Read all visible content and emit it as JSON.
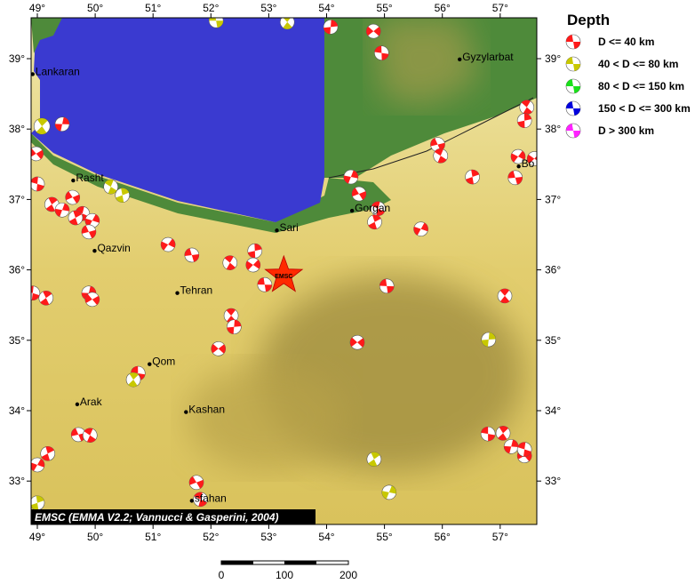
{
  "map": {
    "lon_range": [
      48.9,
      57.65
    ],
    "lat_range": [
      32.4,
      39.6
    ],
    "lon_ticks": [
      49,
      50,
      51,
      52,
      53,
      54,
      55,
      56,
      57
    ],
    "lat_ticks": [
      33,
      34,
      35,
      36,
      37,
      38,
      39
    ],
    "degree_symbol": "°",
    "colors": {
      "sea": "#3a3ad0",
      "lowland": "#4e8a3a",
      "land": "#e6d27a",
      "desert": "#9c8a3e"
    },
    "credit": "EMSC (EMMA V2.2; Vannucci & Gasperini, 2004)",
    "main_event": {
      "lon": 53.26,
      "lat": 35.92,
      "label": "EMSC",
      "color": "#ff2a00"
    },
    "cities": [
      {
        "name": "Lankaran",
        "lon": 48.92,
        "lat": 38.78
      },
      {
        "name": "Rasht",
        "lon": 49.62,
        "lat": 37.27
      },
      {
        "name": "Qazvin",
        "lon": 49.99,
        "lat": 36.27
      },
      {
        "name": "Tehran",
        "lon": 51.42,
        "lat": 35.67
      },
      {
        "name": "Qom",
        "lon": 50.94,
        "lat": 34.66
      },
      {
        "name": "Arak",
        "lon": 49.69,
        "lat": 34.09
      },
      {
        "name": "Kashan",
        "lon": 51.57,
        "lat": 33.98
      },
      {
        "name": "sfahan",
        "lon": 51.67,
        "lat": 32.72
      },
      {
        "name": "Sari",
        "lon": 53.14,
        "lat": 36.56
      },
      {
        "name": "Gorgan",
        "lon": 54.44,
        "lat": 36.84
      },
      {
        "name": "Gyzylarbat",
        "lon": 56.3,
        "lat": 38.99
      },
      {
        "name": "Bo",
        "lon": 57.32,
        "lat": 37.47
      }
    ],
    "events": [
      [
        52.09,
        39.54,
        2
      ],
      [
        53.32,
        39.52,
        2
      ],
      [
        54.07,
        39.45,
        1
      ],
      [
        54.81,
        39.39,
        1
      ],
      [
        54.95,
        39.08,
        1
      ],
      [
        49.08,
        38.04,
        2
      ],
      [
        49.43,
        38.07,
        1
      ],
      [
        48.98,
        37.65,
        1
      ],
      [
        49.0,
        37.22,
        1
      ],
      [
        49.25,
        36.93,
        1
      ],
      [
        49.43,
        36.85,
        1
      ],
      [
        49.61,
        37.03,
        1
      ],
      [
        49.78,
        36.8,
        1
      ],
      [
        49.66,
        36.74,
        1
      ],
      [
        49.95,
        36.7,
        1
      ],
      [
        49.89,
        36.54,
        1
      ],
      [
        50.27,
        37.18,
        2
      ],
      [
        50.47,
        37.06,
        2
      ],
      [
        51.26,
        36.36,
        1
      ],
      [
        51.67,
        36.21,
        1
      ],
      [
        52.33,
        36.1,
        1
      ],
      [
        52.76,
        36.27,
        1
      ],
      [
        52.73,
        36.07,
        1
      ],
      [
        52.93,
        35.79,
        1
      ],
      [
        52.35,
        35.35,
        1
      ],
      [
        52.4,
        35.19,
        1
      ],
      [
        52.13,
        34.88,
        1
      ],
      [
        50.74,
        34.53,
        1
      ],
      [
        50.66,
        34.44,
        2
      ],
      [
        49.89,
        35.67,
        1
      ],
      [
        49.95,
        35.58,
        1
      ],
      [
        48.92,
        35.67,
        1
      ],
      [
        49.15,
        35.6,
        1
      ],
      [
        54.42,
        37.32,
        1
      ],
      [
        54.56,
        37.08,
        1
      ],
      [
        54.89,
        36.87,
        1
      ],
      [
        54.83,
        36.68,
        1
      ],
      [
        55.63,
        36.58,
        1
      ],
      [
        55.92,
        37.78,
        1
      ],
      [
        55.97,
        37.62,
        1
      ],
      [
        56.52,
        37.32,
        1
      ],
      [
        57.31,
        37.61,
        1
      ],
      [
        57.26,
        37.31,
        1
      ],
      [
        57.46,
        38.31,
        1
      ],
      [
        57.42,
        38.12,
        1
      ],
      [
        57.59,
        37.58,
        1
      ],
      [
        55.04,
        35.77,
        1
      ],
      [
        57.08,
        35.63,
        1
      ],
      [
        56.8,
        35.01,
        2
      ],
      [
        54.53,
        34.97,
        1
      ],
      [
        56.79,
        33.67,
        1
      ],
      [
        57.05,
        33.68,
        1
      ],
      [
        57.19,
        33.49,
        1
      ],
      [
        57.42,
        33.36,
        1
      ],
      [
        57.42,
        33.45,
        1
      ],
      [
        54.82,
        33.31,
        2
      ],
      [
        55.08,
        32.84,
        2
      ],
      [
        51.75,
        32.98,
        1
      ],
      [
        51.82,
        32.74,
        1
      ],
      [
        49.18,
        33.39,
        1
      ],
      [
        49.0,
        33.23,
        1
      ],
      [
        49.71,
        33.66,
        1
      ],
      [
        49.91,
        33.65,
        1
      ],
      [
        49.0,
        32.69,
        2
      ]
    ]
  },
  "legend": {
    "title": "Depth",
    "items": [
      {
        "label": "D <= 40 km",
        "color": "#ff1a1a"
      },
      {
        "label": "40 < D <= 80 km",
        "color": "#c8c800"
      },
      {
        "label": "80 < D <= 150 km",
        "color": "#1ae01a"
      },
      {
        "label": "150 < D <= 300 km",
        "color": "#0000dd"
      },
      {
        "label": "D > 300 km",
        "color": "#ff22ff"
      }
    ]
  },
  "scale_bar": {
    "labels": [
      "0",
      "100",
      "200"
    ]
  }
}
